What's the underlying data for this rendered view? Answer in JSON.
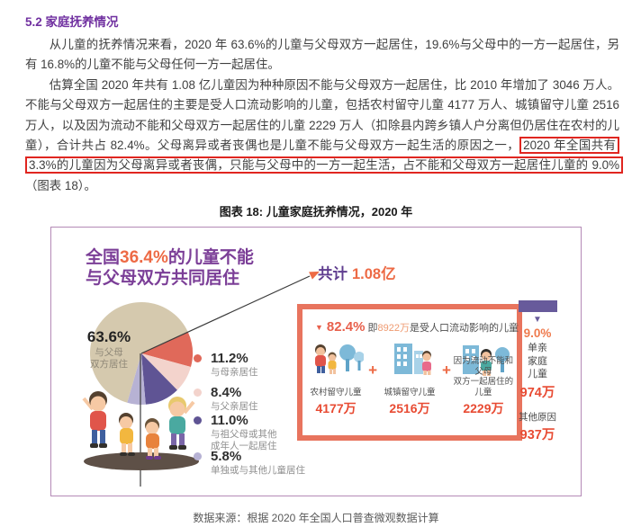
{
  "doc": {
    "section_heading": "5.2 家庭抚养情况",
    "para1": "从儿童的抚养情况来看，2020 年 63.6%的儿童与父母双方一起居住，19.6%与父母中的一方一起居住，另有 16.8%的儿童不能与父母任何一方一起居住。",
    "para2_before": "估算全国 2020 年共有 1.08 亿儿童因为种种原因不能与父母双方一起居住，比 2010 年增加了 3046 万人。不能与父母双方一起居住的主要是受人口流动影响的儿童，包括农村留守儿童 4177 万人、城镇留守儿童 2516 万人，以及因为流动不能和父母双方一起居住的儿童 2229 万人（扣除县内跨乡镇人户分离但仍居住在农村的儿童），合计共占 82.4%。父母离异或者丧偶也是儿童不能与父母双方一起生活的原因之一，",
    "para2_highlight": "2020 年全国共有 3.3%的儿童因为父母离异或者丧偶，只能与父母中的一方一起生活，占不能和父母双方一起居住儿童的 9.0%",
    "para2_after": "（图表 18）。",
    "figure_caption": "图表 18: 儿童家庭抚养情况，2020 年",
    "data_source": "数据来源：根据 2020 年全国人口普查微观数据计算"
  },
  "figure": {
    "headline": {
      "prefix": "全国",
      "pct": "36.4%",
      "suffix": "的儿童不能",
      "line2": "与父母双方共同居住"
    },
    "total": {
      "label": "共计",
      "value": "1.08",
      "unit": "亿"
    },
    "impact": {
      "pct": "82.4%",
      "mid": "即",
      "count": "8922万",
      "tail": "是受人口流动影响的儿童",
      "plus": "+",
      "groups": [
        {
          "label": "农村留守儿童",
          "value": "4177万"
        },
        {
          "label": "城镇留守儿童",
          "value": "2516万"
        },
        {
          "label": "因为流动不能和父母\n双方一起居住的儿童",
          "value": "2229万"
        }
      ]
    },
    "right_column": {
      "pct": "9.0%",
      "label": "单亲\n家庭\n儿童",
      "value": "974万",
      "other_label": "其他原因",
      "other_value": "937万",
      "bar_color": "#675a9b"
    }
  },
  "chart_data": {
    "type": "pie",
    "title": "儿童家庭抚养情况，2020 年",
    "unit": "%",
    "start_angle_deg": 65,
    "legend_position": "right",
    "slices": [
      {
        "label": "与母亲居住",
        "pct": "11.2%",
        "value": 11.2,
        "color": "#e0695a"
      },
      {
        "label": "与父亲居住",
        "pct": "8.4%",
        "value": 8.4,
        "color": "#f3d3cc"
      },
      {
        "label": "与祖父母或其他\n成年人一起居住",
        "pct": "11.0%",
        "value": 11.0,
        "color": "#5f5494"
      },
      {
        "label": "单独或与其他儿童居住",
        "pct": "5.8%",
        "value": 5.8,
        "color": "#b7b2d4"
      },
      {
        "label": "与父母\n双方居住",
        "pct": "63.6%",
        "value": 63.6,
        "color": "#d5c9ae"
      }
    ],
    "annotations": {
      "not_with_both_parents_pct": 36.4,
      "total_children": "1.08亿",
      "migration_affected_pct": 82.4,
      "migration_affected_count": "8922万",
      "rural_left_behind": "4177万",
      "urban_left_behind": "2516万",
      "migrant_children": "2229万",
      "single_parent_pct": 9.0,
      "single_parent_children": "974万",
      "other_reason_children": "937万"
    }
  },
  "colors": {
    "heading_purple": "#7030a0",
    "chart_purple": "#7b3e97",
    "accent_orange": "#ed6a45",
    "value_orange": "#e84b33",
    "highlight_red": "#e02620",
    "panel_border_orange": "#e8745e",
    "bar_purple": "#675a9b",
    "chart_frame_purple": "#b48ab6"
  }
}
